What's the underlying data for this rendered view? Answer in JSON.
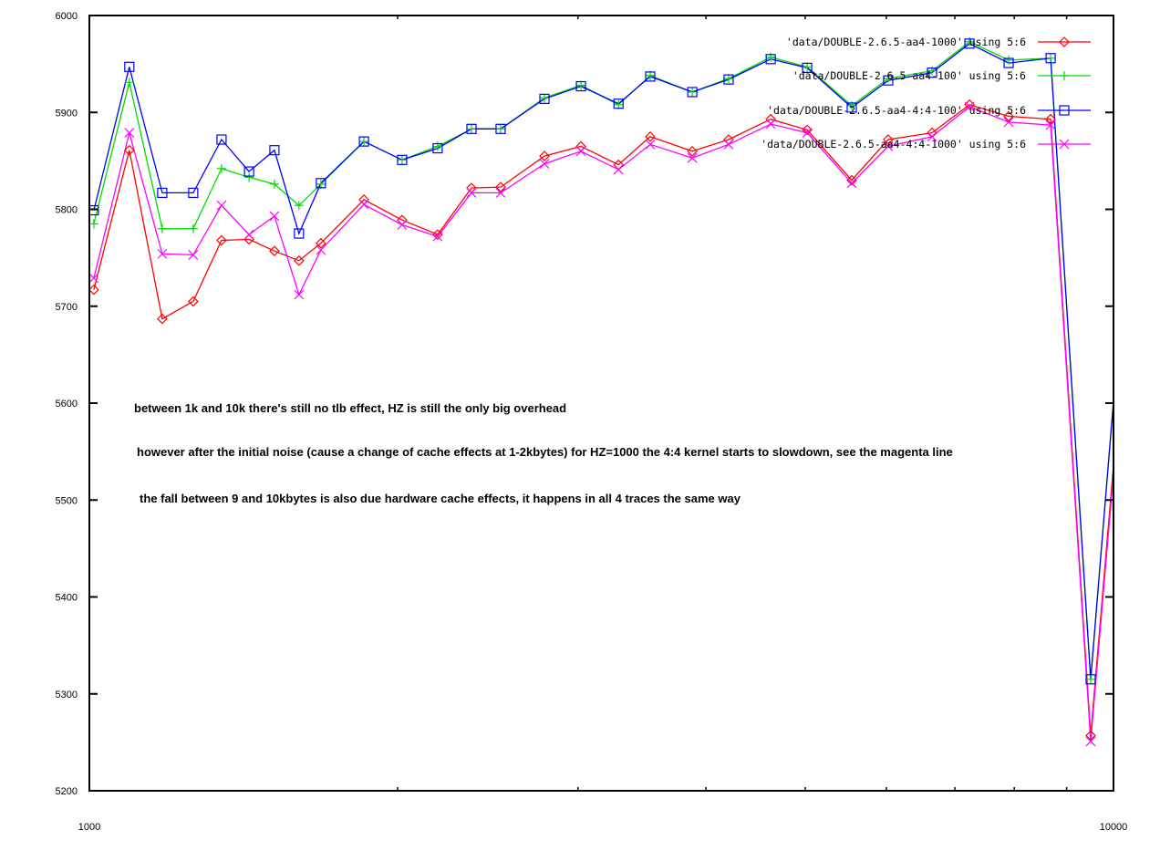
{
  "chart_data": {
    "type": "line",
    "title": "",
    "xlabel": "",
    "ylabel": "",
    "xscale": "log",
    "xlim": [
      1000,
      10000
    ],
    "ylim": [
      5200,
      6000
    ],
    "grid": false,
    "legend_placement": "top-right",
    "x_tick_labels": [
      "1000",
      "10000"
    ],
    "y_tick_labels": [
      "5200",
      "5300",
      "5400",
      "5500",
      "5600",
      "5700",
      "5800",
      "5900",
      "6000"
    ],
    "x": [
      1010,
      1094,
      1178,
      1263,
      1346,
      1432,
      1516,
      1602,
      1683,
      1854,
      2020,
      2188,
      2361,
      2521,
      2782,
      3020,
      3286,
      3529,
      3879,
      4209,
      4627,
      5022,
      5552,
      6026,
      6650,
      7234,
      7900,
      8682,
      9500,
      10000
    ],
    "series": [
      {
        "name": "'data/DOUBLE-2.6.5-aa4-1000' using 5:6",
        "color": "#ff0000",
        "marker": "diamond",
        "values": [
          5717,
          5861,
          5687,
          5705,
          5768,
          5769,
          5757,
          5747,
          5765,
          5810,
          5789,
          5774,
          5822,
          5823,
          5855,
          5865,
          5846,
          5875,
          5860,
          5872,
          5893,
          5882,
          5830,
          5872,
          5879,
          5908,
          5896,
          5893,
          5257,
          5536
        ]
      },
      {
        "name": "'data/DOUBLE-2.6.5-aa4-100' using 5:6",
        "color": "#00dd00",
        "marker": "plus",
        "values": [
          5785,
          5931,
          5780,
          5780,
          5842,
          5833,
          5826,
          5804,
          5826,
          5870,
          5851,
          5865,
          5883,
          5883,
          5915,
          5928,
          5908,
          5938,
          5921,
          5935,
          5957,
          5947,
          5907,
          5935,
          5943,
          5973,
          5954,
          5956,
          5315,
          5602
        ]
      },
      {
        "name": "'data/DOUBLE-2.6.5-aa4-4:4-100' using 5:6",
        "color": "#0000ff",
        "marker": "square",
        "values": [
          5799,
          5947,
          5817,
          5817,
          5872,
          5839,
          5861,
          5775,
          5827,
          5870,
          5851,
          5863,
          5883,
          5883,
          5914,
          5927,
          5909,
          5937,
          5921,
          5934,
          5955,
          5946,
          5905,
          5933,
          5941,
          5971,
          5951,
          5956,
          5315,
          5602
        ]
      },
      {
        "name": "'data/DOUBLE-2.6.5-aa4-4:4-1000' using 5:6",
        "color": "#ff00ff",
        "marker": "cross",
        "values": [
          5729,
          5879,
          5754,
          5753,
          5804,
          5774,
          5793,
          5712,
          5758,
          5805,
          5784,
          5772,
          5817,
          5817,
          5847,
          5860,
          5841,
          5867,
          5853,
          5867,
          5888,
          5879,
          5827,
          5865,
          5875,
          5906,
          5890,
          5887,
          5251,
          5527
        ]
      }
    ],
    "annotations": [
      "between 1k and 10k there's still no tlb effect, HZ is still the only big overhead",
      "however after the initial noise (cause a change of cache effects at 1-2kbytes) for HZ=1000 the 4:4 kernel starts to slowdown, see the magenta line",
      "the fall between 9 and 10kbytes is also due hardware cache effects, it happens in all 4 traces the same way"
    ]
  }
}
